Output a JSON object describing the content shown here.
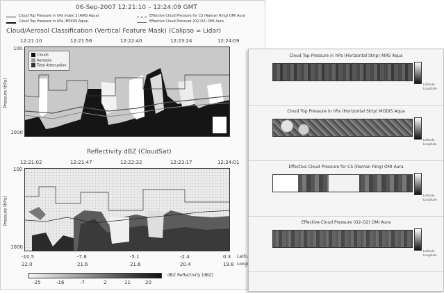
{
  "header": {
    "date_time": "06-Sep-2007 12:21:10 – 12:24:09 GMT",
    "legend_left_1": "Cloud Top Pressure in hPa Index 3 (AIRS Aqua)",
    "legend_left_2": "Cloud Top Pressure in hPa (MODIS Aqua)",
    "legend_right_1": "Effective Cloud Pressure for CS (Raman Ring) OMI Aura",
    "legend_right_2": "Effective Cloud Pressure (O2-O2) OMI Aura"
  },
  "top_panel": {
    "title": "Cloud/Aerosol Classification (Vertical Feature Mask) (Calipso = Lidar)",
    "times": [
      "12:21:10",
      "12:21:56",
      "12:22:40",
      "12:23:24",
      "12:24:09"
    ],
    "ylabel": "Pressure (hPa)",
    "yticks": [
      "100",
      "1000"
    ],
    "legend": [
      "Clouds",
      "Aerosols",
      "Total Attenuation"
    ]
  },
  "bottom_panel": {
    "title": "Reflectivity dBZ (CloudSat)",
    "times": [
      "12:21:02",
      "12:21:47",
      "12:22:32",
      "12:23:17",
      "12:24:01"
    ],
    "ylabel": "Pressure (hPa)",
    "yticks": [
      "100",
      "1000"
    ],
    "lat_ticks": [
      "-10.5",
      "-7.8",
      "-5.1",
      "-2.4",
      "0.3"
    ],
    "lon_ticks": [
      "22.0",
      "21.6",
      "21.6",
      "20.4",
      "19.8"
    ],
    "lat_label": "Latitude",
    "lon_label": "Longitude",
    "cbar_ticks": [
      "-25",
      "-16",
      "-7",
      "2",
      "11",
      "20"
    ],
    "cbar_label": "dBZ Reflectivity (dBZ)"
  },
  "strips": [
    {
      "title": "Cloud Top Pressure in hPa (Horizontal Strip) AIRS Aqua"
    },
    {
      "title": "Cloud Top Pressure in hPa (Horizontal Strip) MODIS Aqua"
    },
    {
      "title": "Effective Cloud Pressure for CS (Raman Ring) OMI Aura"
    },
    {
      "title": "Effective Cloud Pressure (O2-O2) OMI Aura"
    }
  ],
  "strip_common": {
    "lat_label": "Latitude",
    "lon_label": "Longitude"
  }
}
